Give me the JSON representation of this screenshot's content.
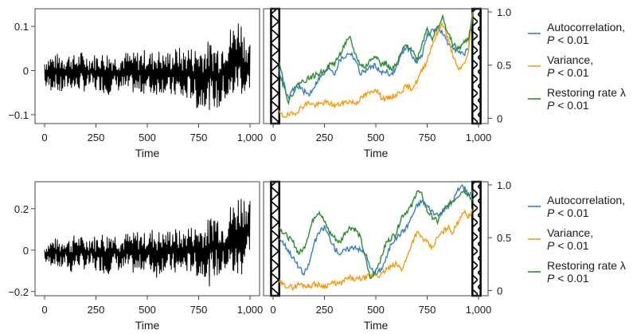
{
  "chart_data": [
    {
      "type": "line",
      "panel": "top-left",
      "xlabel": "Time",
      "ylabel": "",
      "xlim": [
        0,
        1000
      ],
      "ylim": [
        -0.12,
        0.14
      ],
      "xticks": [
        "0",
        "250",
        "500",
        "750",
        "1,000"
      ],
      "xtick_values": [
        0,
        250,
        500,
        750,
        1000
      ],
      "yticks": [
        "−0.1",
        "0",
        "0.1"
      ],
      "ytick_values": [
        -0.1,
        0,
        0.1
      ],
      "series": [
        {
          "color": "#000000",
          "x": [
            0,
            25,
            50,
            75,
            100,
            125,
            150,
            175,
            200,
            225,
            250,
            275,
            300,
            325,
            350,
            375,
            400,
            425,
            450,
            475,
            500,
            525,
            550,
            575,
            600,
            625,
            650,
            675,
            700,
            725,
            750,
            775,
            800,
            825,
            850,
            875,
            900,
            925,
            950,
            975,
            1000
          ],
          "upper": [
            0.03,
            0.04,
            0.035,
            0.045,
            0.04,
            0.04,
            0.035,
            0.045,
            0.04,
            0.035,
            0.04,
            0.04,
            0.045,
            0.04,
            0.035,
            0.04,
            0.045,
            0.04,
            0.045,
            0.05,
            0.045,
            0.045,
            0.05,
            0.04,
            0.045,
            0.05,
            0.055,
            0.05,
            0.06,
            0.05,
            0.065,
            0.06,
            0.07,
            0.065,
            0.07,
            0.08,
            0.1,
            0.11,
            0.13,
            0.09,
            0.06
          ],
          "lower": [
            -0.04,
            -0.05,
            -0.04,
            -0.06,
            -0.05,
            -0.04,
            -0.05,
            -0.045,
            -0.05,
            -0.04,
            -0.05,
            -0.045,
            -0.06,
            -0.05,
            -0.045,
            -0.05,
            -0.055,
            -0.05,
            -0.06,
            -0.055,
            -0.05,
            -0.06,
            -0.055,
            -0.05,
            -0.06,
            -0.065,
            -0.06,
            -0.08,
            -0.065,
            -0.07,
            -0.1,
            -0.08,
            -0.09,
            -0.085,
            -0.1,
            -0.07,
            -0.09,
            -0.06,
            -0.05,
            -0.07,
            -0.04
          ]
        }
      ]
    },
    {
      "type": "line",
      "panel": "top-right",
      "xlabel": "Time",
      "ylabel": "",
      "xlim": [
        0,
        1000
      ],
      "ylim": [
        -0.05,
        1.03
      ],
      "xticks": [
        "0",
        "250",
        "500",
        "750",
        "1,000"
      ],
      "xtick_values": [
        0,
        250,
        500,
        750,
        1000
      ],
      "yticks": [
        "0",
        "0.5",
        "1.0"
      ],
      "ytick_values": [
        0,
        0.5,
        1.0
      ],
      "hatched_regions": [
        [
          -10,
          30
        ],
        [
          970,
          1010
        ]
      ],
      "series": [
        {
          "name": "Autocorrelation,",
          "color": "#3a7dbf",
          "x": [
            30,
            50,
            75,
            100,
            125,
            150,
            175,
            200,
            225,
            250,
            275,
            300,
            325,
            350,
            375,
            400,
            425,
            450,
            475,
            500,
            525,
            550,
            575,
            600,
            625,
            650,
            675,
            700,
            725,
            750,
            775,
            800,
            825,
            850,
            875,
            900,
            925,
            950,
            970
          ],
          "y": [
            0.45,
            0.3,
            0.18,
            0.28,
            0.3,
            0.25,
            0.22,
            0.3,
            0.38,
            0.42,
            0.48,
            0.42,
            0.55,
            0.58,
            0.62,
            0.55,
            0.42,
            0.45,
            0.48,
            0.5,
            0.42,
            0.45,
            0.4,
            0.48,
            0.6,
            0.68,
            0.6,
            0.52,
            0.6,
            0.78,
            0.82,
            0.85,
            0.8,
            0.7,
            0.68,
            0.62,
            0.6,
            0.65,
            0.95
          ]
        },
        {
          "name": "Variance,",
          "color": "#f39c12",
          "x": [
            30,
            50,
            75,
            100,
            125,
            150,
            175,
            200,
            225,
            250,
            275,
            300,
            325,
            350,
            375,
            400,
            425,
            450,
            475,
            500,
            525,
            550,
            575,
            600,
            625,
            650,
            675,
            700,
            725,
            750,
            775,
            800,
            825,
            850,
            875,
            900,
            925,
            950,
            970
          ],
          "y": [
            0.05,
            0.02,
            0.03,
            0.04,
            0.08,
            0.12,
            0.15,
            0.12,
            0.13,
            0.15,
            0.14,
            0.12,
            0.13,
            0.15,
            0.16,
            0.14,
            0.18,
            0.22,
            0.24,
            0.28,
            0.2,
            0.18,
            0.2,
            0.22,
            0.26,
            0.3,
            0.28,
            0.35,
            0.45,
            0.55,
            0.7,
            0.8,
            0.9,
            0.75,
            0.6,
            0.45,
            0.5,
            0.6,
            1.0
          ]
        },
        {
          "name": "Restoring rate λ",
          "color": "#2e8b2e",
          "x": [
            30,
            50,
            75,
            100,
            125,
            150,
            175,
            200,
            225,
            250,
            275,
            300,
            325,
            350,
            375,
            400,
            425,
            450,
            475,
            500,
            525,
            550,
            575,
            600,
            625,
            650,
            675,
            700,
            725,
            750,
            775,
            800,
            825,
            850,
            875,
            900,
            925,
            950,
            970
          ],
          "y": [
            0.55,
            0.35,
            0.15,
            0.25,
            0.33,
            0.35,
            0.38,
            0.4,
            0.42,
            0.45,
            0.5,
            0.52,
            0.6,
            0.7,
            0.75,
            0.6,
            0.5,
            0.48,
            0.55,
            0.6,
            0.5,
            0.52,
            0.45,
            0.5,
            0.62,
            0.7,
            0.65,
            0.55,
            0.7,
            0.85,
            0.75,
            0.85,
            0.95,
            0.8,
            0.7,
            0.65,
            0.7,
            0.75,
            0.95
          ]
        }
      ],
      "legend": {
        "position": "right",
        "entries": [
          {
            "label": "Autocorrelation,",
            "sublabel": "P < 0.01",
            "color": "#3a7dbf"
          },
          {
            "label": "Variance,",
            "sublabel": "P < 0.01",
            "color": "#f39c12"
          },
          {
            "label": "Restoring rate λ",
            "sublabel": "P < 0.01",
            "color": "#2e8b2e"
          }
        ]
      }
    },
    {
      "type": "line",
      "panel": "bottom-left",
      "xlabel": "Time",
      "ylabel": "",
      "xlim": [
        0,
        1000
      ],
      "ylim": [
        -0.22,
        0.33
      ],
      "xticks": [
        "0",
        "250",
        "500",
        "750",
        "1,000"
      ],
      "xtick_values": [
        0,
        250,
        500,
        750,
        1000
      ],
      "yticks": [
        "−0.2",
        "0",
        "0.2"
      ],
      "ytick_values": [
        -0.2,
        0,
        0.2
      ],
      "series": [
        {
          "color": "#000000",
          "x": [
            0,
            25,
            50,
            75,
            100,
            125,
            150,
            175,
            200,
            225,
            250,
            275,
            300,
            325,
            350,
            375,
            400,
            425,
            450,
            475,
            500,
            525,
            550,
            575,
            600,
            625,
            650,
            675,
            700,
            725,
            750,
            775,
            800,
            825,
            850,
            875,
            900,
            925,
            950,
            975,
            1000
          ],
          "upper": [
            0.02,
            0.05,
            0.06,
            0.05,
            0.07,
            0.06,
            0.08,
            0.07,
            0.06,
            0.08,
            0.07,
            0.09,
            0.08,
            0.1,
            0.08,
            0.07,
            0.09,
            0.08,
            0.1,
            0.09,
            0.08,
            0.11,
            0.1,
            0.09,
            0.1,
            0.12,
            0.1,
            0.09,
            0.13,
            0.11,
            0.14,
            0.12,
            0.16,
            0.2,
            0.18,
            0.13,
            0.22,
            0.25,
            0.3,
            0.28,
            0.24
          ],
          "lower": [
            -0.06,
            -0.08,
            -0.07,
            -0.1,
            -0.08,
            -0.12,
            -0.09,
            -0.08,
            -0.1,
            -0.09,
            -0.11,
            -0.1,
            -0.13,
            -0.1,
            -0.09,
            -0.12,
            -0.1,
            -0.11,
            -0.13,
            -0.1,
            -0.09,
            -0.12,
            -0.14,
            -0.1,
            -0.11,
            -0.12,
            -0.13,
            -0.1,
            -0.12,
            -0.1,
            -0.15,
            -0.12,
            -0.18,
            -0.13,
            -0.15,
            -0.1,
            -0.12,
            -0.15,
            -0.16,
            -0.08,
            0.0
          ]
        }
      ]
    },
    {
      "type": "line",
      "panel": "bottom-right",
      "xlabel": "Time",
      "ylabel": "",
      "xlim": [
        0,
        1000
      ],
      "ylim": [
        -0.05,
        1.03
      ],
      "xticks": [
        "0",
        "250",
        "500",
        "750",
        "1,000"
      ],
      "xtick_values": [
        0,
        250,
        500,
        750,
        1000
      ],
      "yticks": [
        "0",
        "0.5",
        "1.0"
      ],
      "ytick_values": [
        0,
        0.5,
        1.0
      ],
      "hatched_regions": [
        [
          -10,
          30
        ],
        [
          970,
          1010
        ]
      ],
      "series": [
        {
          "name": "Autocorrelation,",
          "color": "#3a7dbf",
          "x": [
            30,
            50,
            75,
            100,
            125,
            150,
            175,
            200,
            225,
            250,
            275,
            300,
            325,
            350,
            375,
            400,
            425,
            450,
            475,
            500,
            525,
            550,
            575,
            600,
            625,
            650,
            675,
            700,
            725,
            750,
            775,
            800,
            825,
            850,
            875,
            900,
            925,
            950,
            970
          ],
          "y": [
            0.5,
            0.45,
            0.38,
            0.3,
            0.22,
            0.15,
            0.25,
            0.45,
            0.55,
            0.6,
            0.5,
            0.4,
            0.35,
            0.38,
            0.4,
            0.42,
            0.38,
            0.35,
            0.2,
            0.15,
            0.2,
            0.3,
            0.45,
            0.5,
            0.55,
            0.6,
            0.7,
            0.8,
            0.85,
            0.8,
            0.75,
            0.7,
            0.75,
            0.8,
            0.85,
            0.95,
            1.0,
            0.9,
            0.95
          ]
        },
        {
          "name": "Variance,",
          "color": "#f39c12",
          "x": [
            30,
            50,
            75,
            100,
            125,
            150,
            175,
            200,
            225,
            250,
            275,
            300,
            325,
            350,
            375,
            400,
            425,
            450,
            475,
            500,
            525,
            550,
            575,
            600,
            625,
            650,
            675,
            700,
            725,
            750,
            775,
            800,
            825,
            850,
            875,
            900,
            925,
            950,
            970
          ],
          "y": [
            0.08,
            0.05,
            0.04,
            0.03,
            0.06,
            0.05,
            0.04,
            0.06,
            0.05,
            0.04,
            0.06,
            0.07,
            0.06,
            0.1,
            0.12,
            0.1,
            0.11,
            0.12,
            0.14,
            0.15,
            0.14,
            0.2,
            0.22,
            0.25,
            0.2,
            0.3,
            0.45,
            0.55,
            0.5,
            0.45,
            0.4,
            0.5,
            0.55,
            0.6,
            0.55,
            0.65,
            0.75,
            0.7,
            0.75
          ]
        },
        {
          "name": "Restoring rate λ",
          "color": "#2e8b2e",
          "x": [
            30,
            50,
            75,
            100,
            125,
            150,
            175,
            200,
            225,
            250,
            275,
            300,
            325,
            350,
            375,
            400,
            425,
            450,
            475,
            500,
            525,
            550,
            575,
            600,
            625,
            650,
            675,
            700,
            725,
            750,
            775,
            800,
            825,
            850,
            875,
            900,
            925,
            950,
            970
          ],
          "y": [
            0.6,
            0.55,
            0.5,
            0.45,
            0.35,
            0.4,
            0.55,
            0.7,
            0.75,
            0.65,
            0.55,
            0.5,
            0.45,
            0.55,
            0.6,
            0.58,
            0.5,
            0.3,
            0.1,
            0.2,
            0.3,
            0.45,
            0.5,
            0.55,
            0.7,
            0.75,
            0.8,
            0.95,
            0.9,
            0.75,
            0.7,
            0.65,
            0.75,
            0.8,
            0.85,
            0.9,
            0.95,
            0.92,
            0.85
          ]
        }
      ],
      "legend": {
        "position": "right",
        "entries": [
          {
            "label": "Autocorrelation,",
            "sublabel": "P < 0.01",
            "color": "#3a7dbf"
          },
          {
            "label": "Variance,",
            "sublabel": "P < 0.01",
            "color": "#f39c12"
          },
          {
            "label": "Restoring rate λ",
            "sublabel": "P < 0.01",
            "color": "#2e8b2e"
          }
        ]
      }
    }
  ]
}
